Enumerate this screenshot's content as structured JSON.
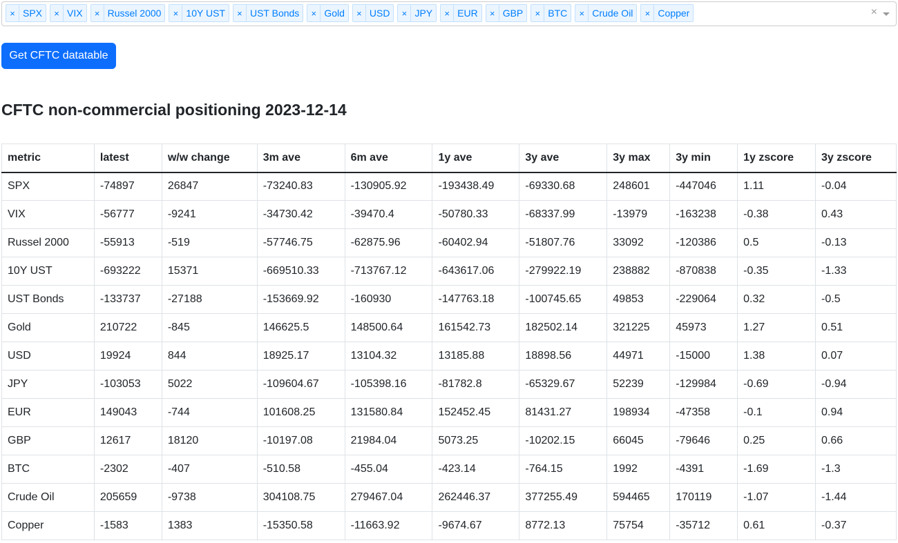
{
  "multiselect": {
    "chips": [
      "SPX",
      "VIX",
      "Russel 2000",
      "10Y UST",
      "UST Bonds",
      "Gold",
      "USD",
      "JPY",
      "EUR",
      "GBP",
      "BTC",
      "Crude Oil",
      "Copper"
    ],
    "chip_remove_glyph": "×",
    "clear_glyph": "×"
  },
  "button": {
    "label": "Get CFTC datatable"
  },
  "title": "CFTC non-commercial positioning 2023-12-14",
  "table": {
    "columns": [
      "metric",
      "latest",
      "w/w change",
      "3m ave",
      "6m ave",
      "1y ave",
      "3y ave",
      "3y max",
      "3y min",
      "1y zscore",
      "3y zscore"
    ],
    "rows": [
      [
        "SPX",
        "-74897",
        "26847",
        "-73240.83",
        "-130905.92",
        "-193438.49",
        "-69330.68",
        "248601",
        "-447046",
        "1.11",
        "-0.04"
      ],
      [
        "VIX",
        "-56777",
        "-9241",
        "-34730.42",
        "-39470.4",
        "-50780.33",
        "-68337.99",
        "-13979",
        "-163238",
        "-0.38",
        "0.43"
      ],
      [
        "Russel 2000",
        "-55913",
        "-519",
        "-57746.75",
        "-62875.96",
        "-60402.94",
        "-51807.76",
        "33092",
        "-120386",
        "0.5",
        "-0.13"
      ],
      [
        "10Y UST",
        "-693222",
        "15371",
        "-669510.33",
        "-713767.12",
        "-643617.06",
        "-279922.19",
        "238882",
        "-870838",
        "-0.35",
        "-1.33"
      ],
      [
        "UST Bonds",
        "-133737",
        "-27188",
        "-153669.92",
        "-160930",
        "-147763.18",
        "-100745.65",
        "49853",
        "-229064",
        "0.32",
        "-0.5"
      ],
      [
        "Gold",
        "210722",
        "-845",
        "146625.5",
        "148500.64",
        "161542.73",
        "182502.14",
        "321225",
        "45973",
        "1.27",
        "0.51"
      ],
      [
        "USD",
        "19924",
        "844",
        "18925.17",
        "13104.32",
        "13185.88",
        "18898.56",
        "44971",
        "-15000",
        "1.38",
        "0.07"
      ],
      [
        "JPY",
        "-103053",
        "5022",
        "-109604.67",
        "-105398.16",
        "-81782.8",
        "-65329.67",
        "52239",
        "-129984",
        "-0.69",
        "-0.94"
      ],
      [
        "EUR",
        "149043",
        "-744",
        "101608.25",
        "131580.84",
        "152452.45",
        "81431.27",
        "198934",
        "-47358",
        "-0.1",
        "0.94"
      ],
      [
        "GBP",
        "12617",
        "18120",
        "-10197.08",
        "21984.04",
        "5073.25",
        "-10202.15",
        "66045",
        "-79646",
        "0.25",
        "0.66"
      ],
      [
        "BTC",
        "-2302",
        "-407",
        "-510.58",
        "-455.04",
        "-423.14",
        "-764.15",
        "1992",
        "-4391",
        "-1.69",
        "-1.3"
      ],
      [
        "Crude Oil",
        "205659",
        "-9738",
        "304108.75",
        "279467.04",
        "262446.37",
        "377255.49",
        "594465",
        "170119",
        "-1.07",
        "-1.44"
      ],
      [
        "Copper",
        "-1583",
        "1383",
        "-15350.58",
        "-11663.92",
        "-9674.67",
        "8772.13",
        "75754",
        "-35712",
        "0.61",
        "-0.37"
      ]
    ]
  }
}
